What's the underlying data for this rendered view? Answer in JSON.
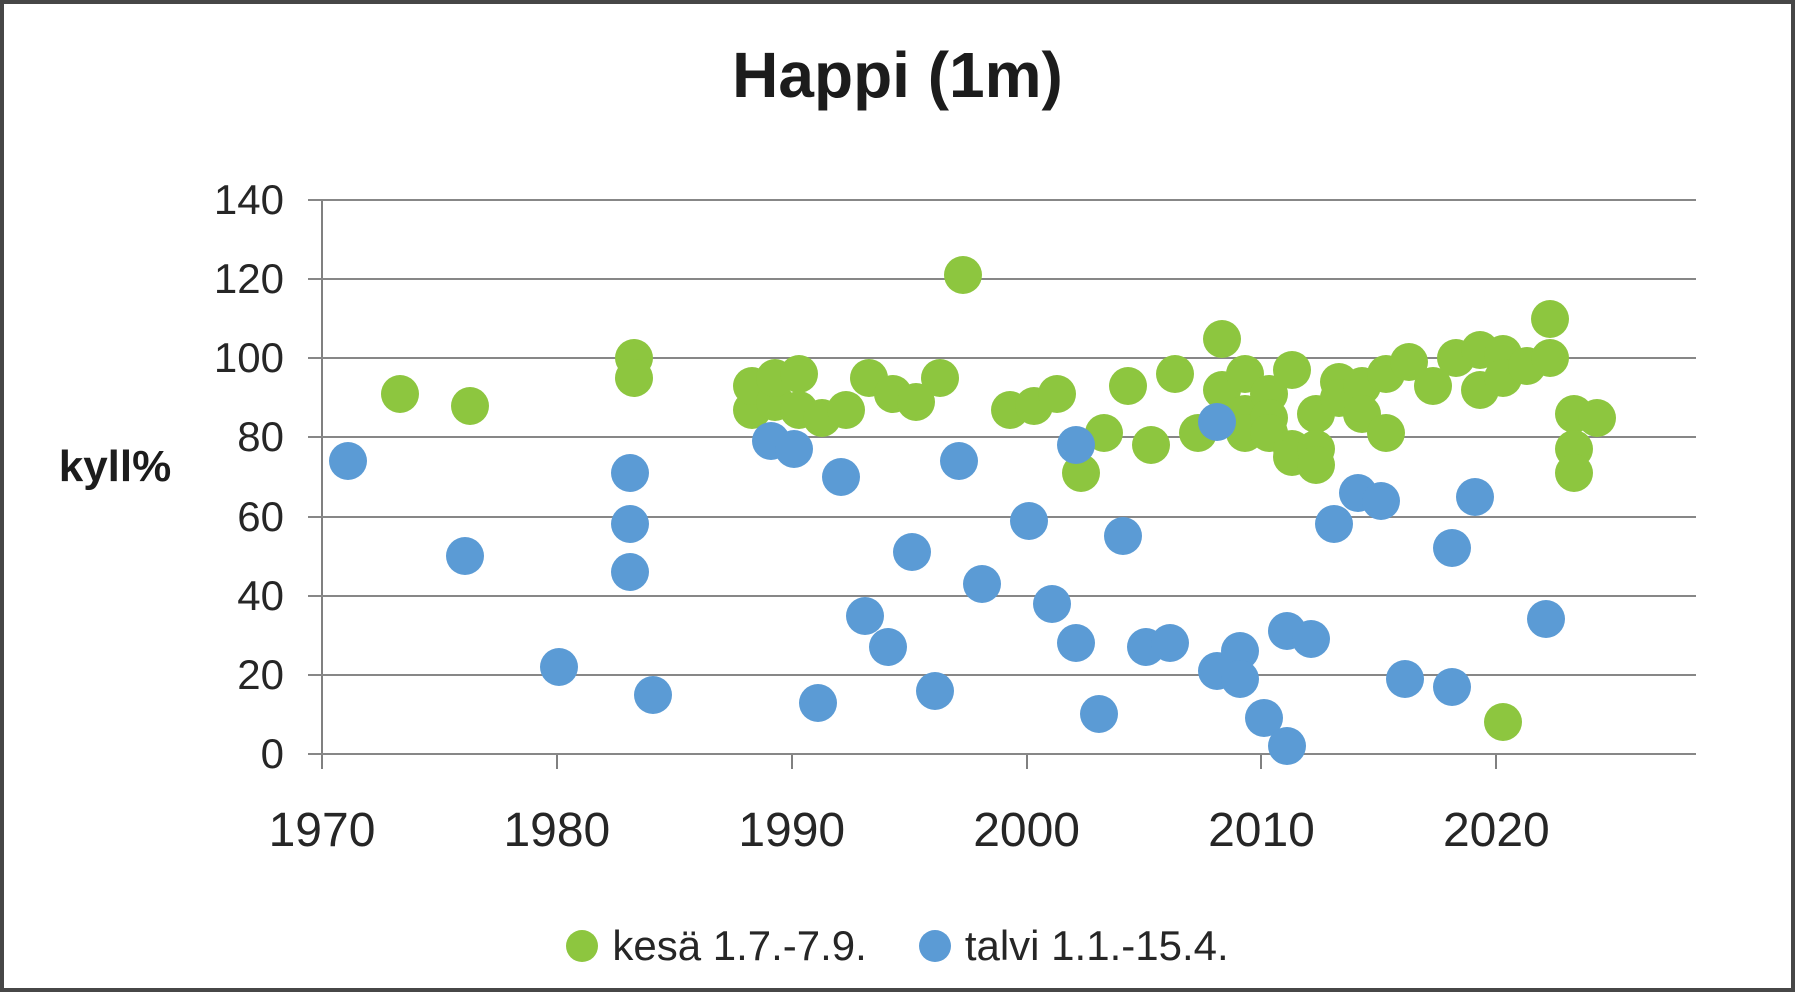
{
  "chart_data": {
    "type": "scatter",
    "title": "Happi (1m)",
    "ylabel": "kyll%",
    "xlabel": "",
    "xlim": [
      1970,
      2028.5
    ],
    "ylim": [
      0,
      140
    ],
    "x_ticks": [
      1970,
      1980,
      1990,
      2000,
      2010,
      2020
    ],
    "y_ticks": [
      0,
      20,
      40,
      60,
      80,
      100,
      120,
      140
    ],
    "grid": "horizontal",
    "gridline_color": "#878787",
    "axis_color": "#808080",
    "text_color": "#262626",
    "legend_position": "bottom-center",
    "series": [
      {
        "name": "kesä 1.7.-7.9.",
        "marker_color": "#8dc63f",
        "x_offset": 0.3,
        "points": [
          [
            1973,
            91
          ],
          [
            1976,
            88
          ],
          [
            1983,
            100
          ],
          [
            1983,
            95
          ],
          [
            1988,
            87
          ],
          [
            1988,
            93
          ],
          [
            1989,
            89
          ],
          [
            1989,
            95
          ],
          [
            1990,
            96
          ],
          [
            1990,
            87
          ],
          [
            1991,
            85
          ],
          [
            1992,
            87
          ],
          [
            1993,
            95
          ],
          [
            1994,
            91
          ],
          [
            1995,
            89
          ],
          [
            1996,
            95
          ],
          [
            1997,
            121
          ],
          [
            1999,
            87
          ],
          [
            2000,
            88
          ],
          [
            2001,
            91
          ],
          [
            2002,
            71
          ],
          [
            2003,
            81
          ],
          [
            2004,
            93
          ],
          [
            2005,
            78
          ],
          [
            2006,
            96
          ],
          [
            2007,
            81
          ],
          [
            2008,
            105
          ],
          [
            2008,
            92
          ],
          [
            2009,
            96
          ],
          [
            2009,
            86
          ],
          [
            2009,
            81
          ],
          [
            2010,
            91
          ],
          [
            2010,
            85
          ],
          [
            2010,
            81
          ],
          [
            2011,
            97
          ],
          [
            2011,
            77
          ],
          [
            2011,
            75
          ],
          [
            2012,
            86
          ],
          [
            2012,
            77
          ],
          [
            2012,
            73
          ],
          [
            2013,
            94
          ],
          [
            2013,
            90
          ],
          [
            2014,
            93
          ],
          [
            2014,
            86
          ],
          [
            2015,
            96
          ],
          [
            2015,
            81
          ],
          [
            2016,
            99
          ],
          [
            2017,
            93
          ],
          [
            2018,
            100
          ],
          [
            2019,
            102
          ],
          [
            2019,
            92
          ],
          [
            2020,
            101
          ],
          [
            2020,
            95
          ],
          [
            2020,
            8
          ],
          [
            2021,
            98
          ],
          [
            2022,
            110
          ],
          [
            2022,
            100
          ],
          [
            2023,
            86
          ],
          [
            2023,
            77
          ],
          [
            2023,
            71
          ],
          [
            2024,
            85
          ]
        ]
      },
      {
        "name": "talvi 1.1.-15.4.",
        "marker_color": "#5b9bd5",
        "x_offset": 0.1,
        "points": [
          [
            1971,
            74
          ],
          [
            1976,
            50
          ],
          [
            1980,
            22
          ],
          [
            1983,
            71
          ],
          [
            1983,
            58
          ],
          [
            1983,
            46
          ],
          [
            1984,
            15
          ],
          [
            1989,
            79
          ],
          [
            1990,
            77
          ],
          [
            1991,
            13
          ],
          [
            1992,
            70
          ],
          [
            1993,
            35
          ],
          [
            1994,
            27
          ],
          [
            1995,
            51
          ],
          [
            1996,
            16
          ],
          [
            1997,
            74
          ],
          [
            1998,
            43
          ],
          [
            2000,
            59
          ],
          [
            2001,
            38
          ],
          [
            2002,
            78
          ],
          [
            2002,
            28
          ],
          [
            2003,
            10
          ],
          [
            2004,
            55
          ],
          [
            2005,
            27
          ],
          [
            2006,
            28
          ],
          [
            2008,
            84
          ],
          [
            2008,
            21
          ],
          [
            2009,
            26
          ],
          [
            2009,
            19
          ],
          [
            2010,
            9
          ],
          [
            2011,
            2
          ],
          [
            2011,
            31
          ],
          [
            2012,
            29
          ],
          [
            2013,
            58
          ],
          [
            2014,
            66
          ],
          [
            2015,
            64
          ],
          [
            2016,
            19
          ],
          [
            2018,
            52
          ],
          [
            2018,
            17
          ],
          [
            2019,
            65
          ],
          [
            2022,
            34
          ]
        ]
      }
    ]
  }
}
